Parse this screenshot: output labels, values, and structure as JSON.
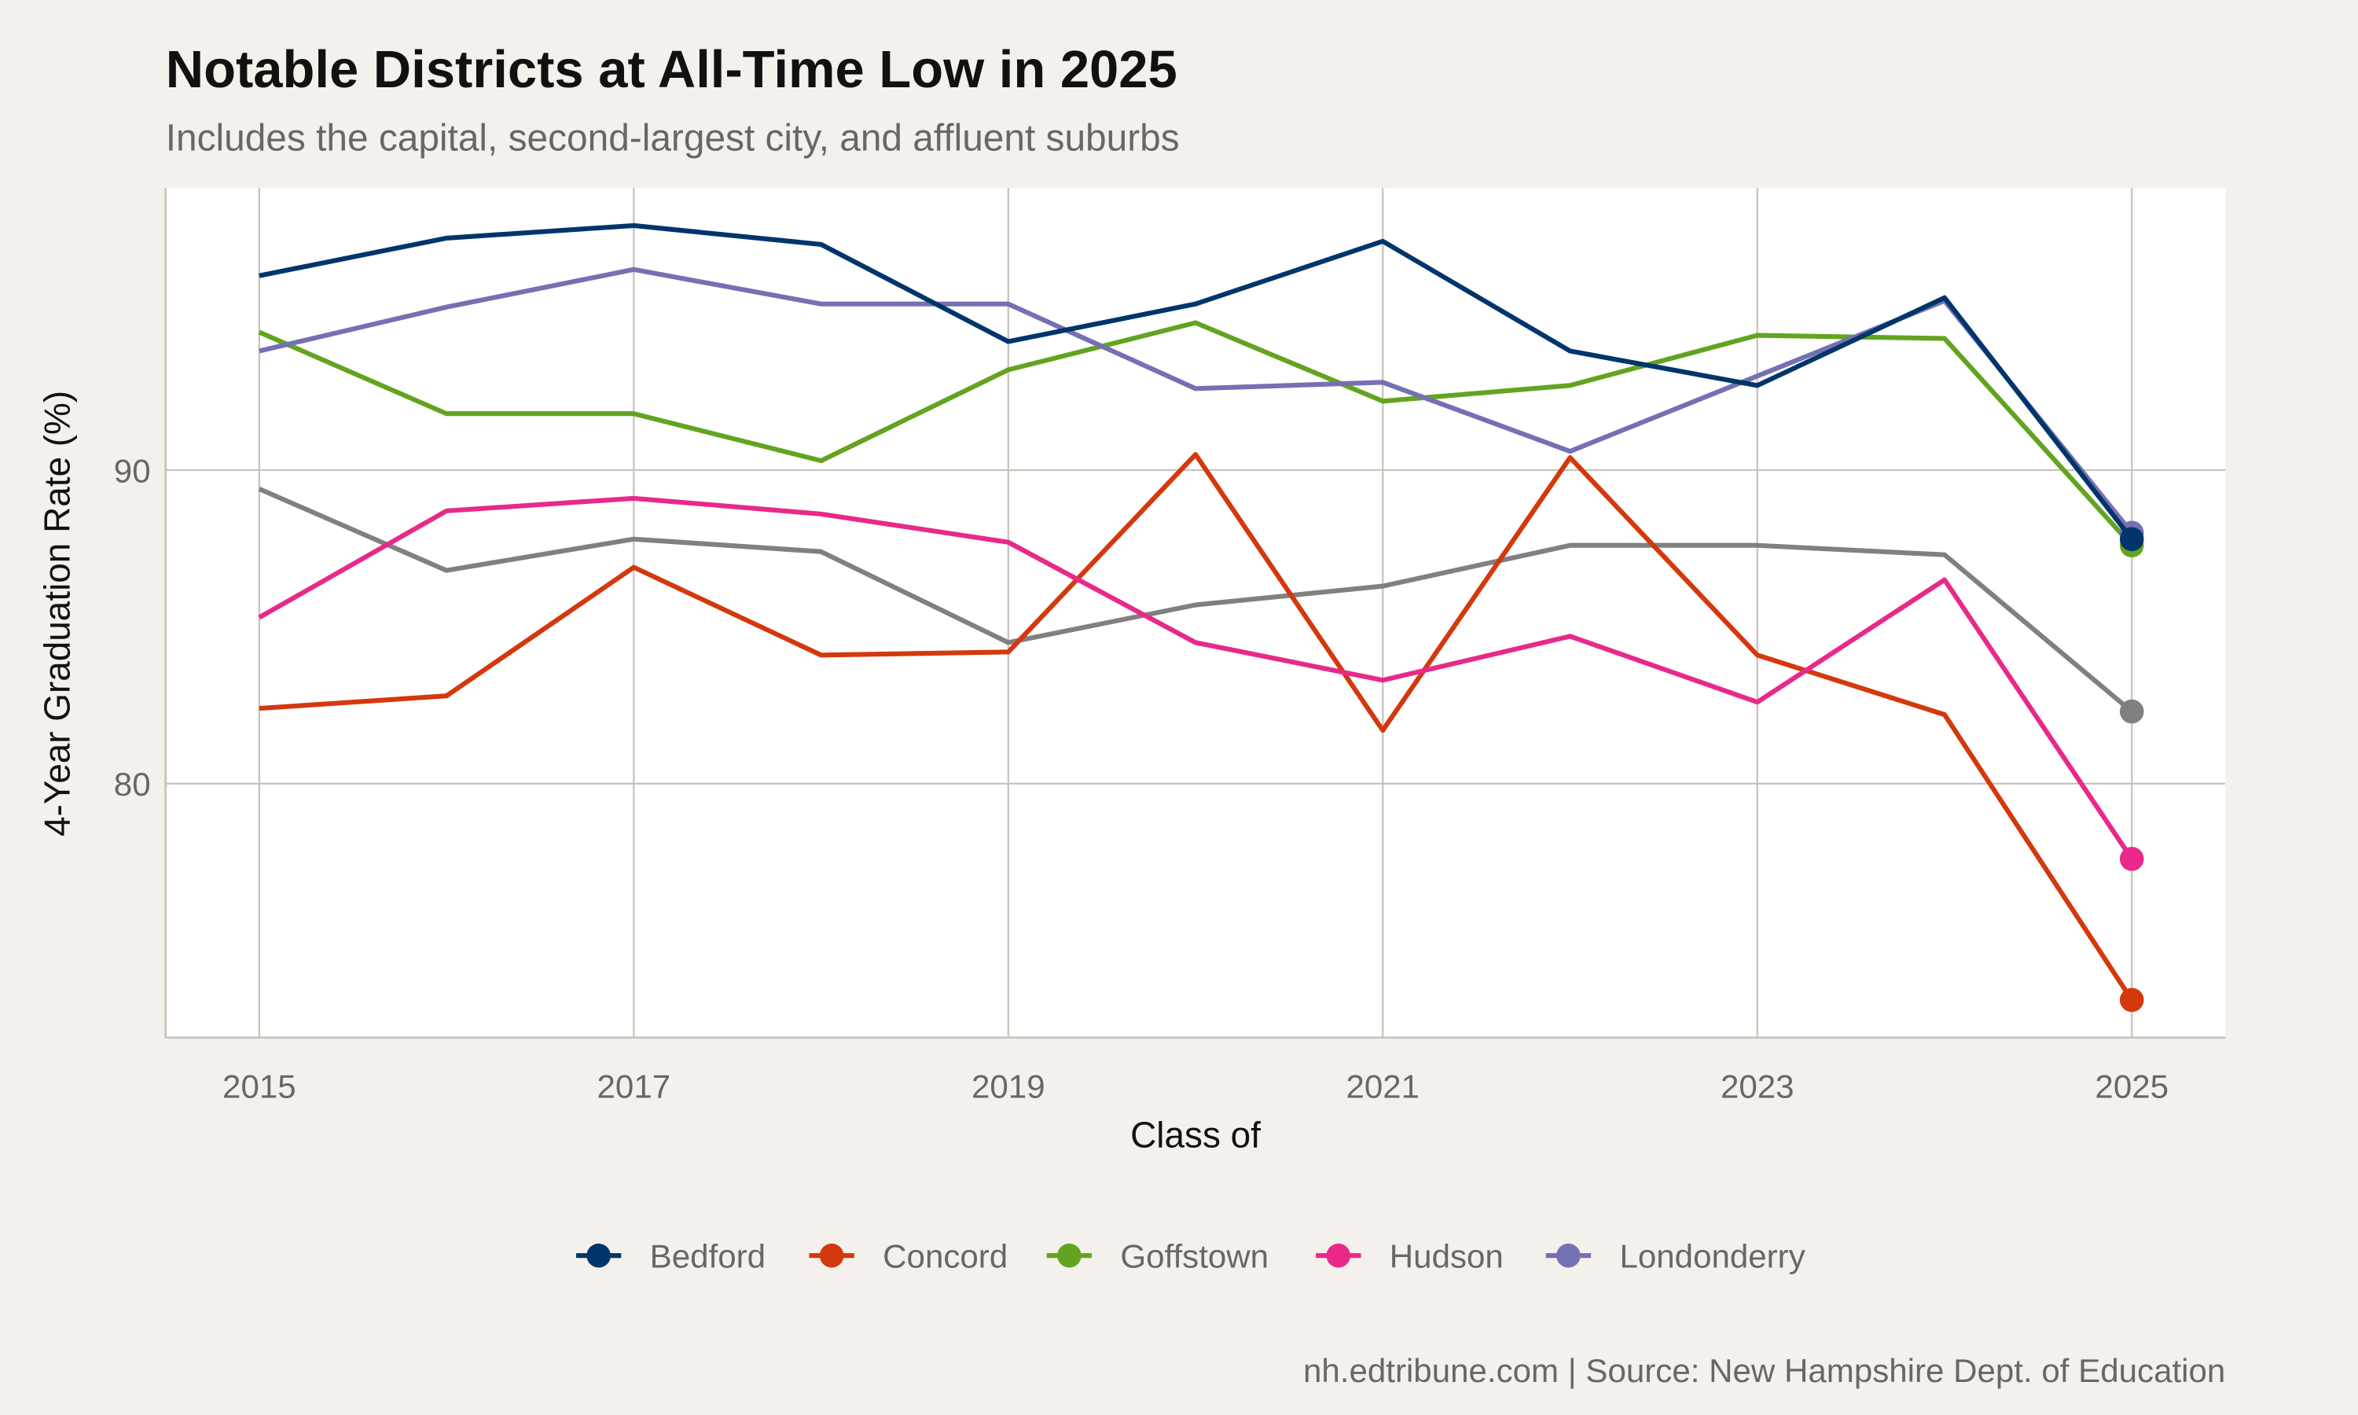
{
  "chart_data": {
    "type": "line",
    "title": "Notable Districts at All-Time Low in 2025",
    "subtitle": "Includes the capital, second-largest city, and affluent suburbs",
    "xlabel": "Class of",
    "ylabel": "4-Year Graduation Rate (%)",
    "caption": "nh.edtribune.com | Source: New Hampshire Dept. of Education",
    "x": [
      2015,
      2016,
      2017,
      2018,
      2019,
      2020,
      2021,
      2022,
      2023,
      2024,
      2025
    ],
    "xlim": [
      2014.5,
      2025.5
    ],
    "ylim": [
      71.9,
      99.0
    ],
    "x_ticks": [
      "2015",
      "2017",
      "2019",
      "2021",
      "2023",
      "2025"
    ],
    "y_ticks": [
      "80",
      "90"
    ],
    "grid": true,
    "legend_position": "bottom",
    "series": [
      {
        "name": "",
        "color": "#808080",
        "values": [
          89.4,
          86.8,
          87.8,
          87.4,
          84.5,
          85.7,
          86.3,
          87.6,
          87.6,
          87.3,
          82.3
        ]
      },
      {
        "name": "Concord",
        "color": "#d4380d",
        "values": [
          82.4,
          82.8,
          86.9,
          84.1,
          84.2,
          90.5,
          81.7,
          90.4,
          84.1,
          82.2,
          73.1
        ]
      },
      {
        "name": "Hudson",
        "color": "#e8298a",
        "values": [
          85.3,
          88.7,
          89.1,
          88.6,
          87.7,
          84.5,
          83.3,
          84.7,
          82.6,
          86.5,
          77.6
        ]
      },
      {
        "name": "Goffstown",
        "color": "#62a420",
        "values": [
          94.4,
          91.8,
          91.8,
          90.3,
          93.2,
          94.7,
          92.2,
          92.7,
          94.3,
          94.2,
          87.6
        ]
      },
      {
        "name": "Londonderry",
        "color": "#7570b3",
        "values": [
          93.8,
          95.2,
          96.4,
          95.3,
          95.3,
          92.6,
          92.8,
          90.6,
          93.0,
          95.4,
          88.0
        ]
      },
      {
        "name": "Bedford",
        "color": "#00356b",
        "values": [
          96.2,
          97.4,
          97.8,
          97.2,
          94.1,
          95.3,
          97.3,
          93.8,
          92.7,
          95.5,
          87.8
        ]
      }
    ],
    "legend": [
      "Bedford",
      "Concord",
      "Goffstown",
      "Hudson",
      "Londonderry"
    ]
  }
}
